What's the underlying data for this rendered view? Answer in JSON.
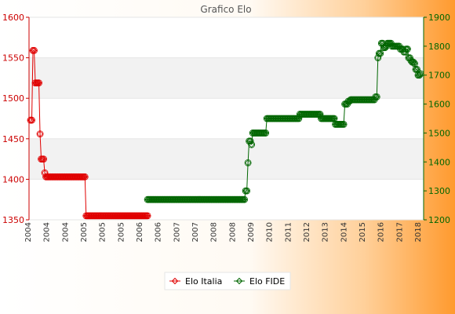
{
  "chart_data": {
    "type": "line",
    "title": "Grafico Elo",
    "left_axis": {
      "min": 1350,
      "max": 1600,
      "ticks": [
        1350,
        1400,
        1450,
        1500,
        1550,
        1600
      ],
      "color": "#cc0000"
    },
    "right_axis": {
      "min": 1200,
      "max": 1900,
      "ticks": [
        1200,
        1300,
        1400,
        1500,
        1600,
        1700,
        1800,
        1900
      ],
      "color": "#006600"
    },
    "legend_position": "bottom",
    "grid": "horizontal bands",
    "x_label_fragments": [
      "2004",
      "2004",
      "2004",
      "2005",
      "2005",
      "2005",
      "2006",
      "2006",
      "2007",
      "2007",
      "2008",
      "2008",
      "2009",
      "2010",
      "2011",
      "2012",
      "2013",
      "2014",
      "2015",
      "2016",
      "2017",
      "2018"
    ],
    "series": [
      {
        "name": "Elo Italia",
        "axis": "left",
        "color": "#e00000",
        "values": [
          1473,
          1473,
          1559,
          1559,
          1519,
          1519,
          1519,
          1519,
          1456,
          1425,
          1425,
          1425,
          1408,
          1403,
          1403,
          1403,
          1403,
          1403,
          1403,
          1403,
          1403,
          1403,
          1403,
          1403,
          1403,
          1403,
          1403,
          1403,
          1403,
          1403,
          1403,
          1403,
          1403,
          1403,
          1403,
          1403,
          1403,
          1403,
          1403,
          1403,
          1403,
          1403,
          1403,
          1403,
          1403,
          1403,
          1403,
          1355,
          1355,
          1355,
          1355,
          1355,
          1355,
          1355,
          1355,
          1355,
          1355,
          1355,
          1355,
          1355,
          1355,
          1355,
          1355,
          1355,
          1355,
          1355,
          1355,
          1355,
          1355,
          1355,
          1355,
          1355,
          1355,
          1355,
          1355,
          1355,
          1355,
          1355,
          1355,
          1355,
          1355,
          1355,
          1355,
          1355,
          1355,
          1355,
          1355,
          1355,
          1355,
          1355,
          1355,
          1355,
          1355,
          1355,
          1355,
          1355,
          1355,
          1355,
          1355,
          1355
        ]
      },
      {
        "name": "Elo FIDE",
        "axis": "right",
        "color": "#006600",
        "start_index": 99,
        "values": [
          1270,
          1270,
          1270,
          1270,
          1270,
          1270,
          1270,
          1270,
          1270,
          1270,
          1270,
          1270,
          1270,
          1270,
          1270,
          1270,
          1270,
          1270,
          1270,
          1270,
          1270,
          1270,
          1270,
          1270,
          1270,
          1270,
          1270,
          1270,
          1270,
          1270,
          1270,
          1270,
          1270,
          1270,
          1270,
          1270,
          1270,
          1270,
          1270,
          1270,
          1270,
          1270,
          1270,
          1270,
          1270,
          1270,
          1270,
          1270,
          1270,
          1270,
          1270,
          1270,
          1270,
          1270,
          1270,
          1270,
          1270,
          1270,
          1270,
          1270,
          1270,
          1270,
          1270,
          1270,
          1270,
          1270,
          1270,
          1270,
          1270,
          1270,
          1270,
          1270,
          1270,
          1270,
          1270,
          1270,
          1270,
          1270,
          1270,
          1270,
          1270,
          1270,
          1270,
          1300,
          1300,
          1397,
          1472,
          1472,
          1460,
          1500,
          1500,
          1500,
          1500,
          1500,
          1500,
          1500,
          1500,
          1500,
          1500,
          1500,
          1500,
          1550,
          1550,
          1550,
          1550,
          1550,
          1550,
          1550,
          1550,
          1550,
          1550,
          1550,
          1550,
          1550,
          1550,
          1550,
          1550,
          1550,
          1550,
          1550,
          1550,
          1550,
          1550,
          1550,
          1550,
          1550,
          1550,
          1550,
          1550,
          1565,
          1565,
          1565,
          1565,
          1565,
          1565,
          1565,
          1565,
          1565,
          1565,
          1565,
          1565,
          1565,
          1565,
          1565,
          1565,
          1565,
          1565,
          1550,
          1550,
          1550,
          1550,
          1550,
          1550,
          1550,
          1550,
          1550,
          1550,
          1550,
          1550,
          1530,
          1530,
          1530,
          1530,
          1530,
          1530,
          1530,
          1530,
          1600,
          1600,
          1600,
          1610,
          1610,
          1615,
          1615,
          1615,
          1615,
          1615,
          1615,
          1615,
          1615,
          1615,
          1615,
          1615,
          1615,
          1615,
          1615,
          1615,
          1615,
          1615,
          1615,
          1615,
          1615,
          1615,
          1625,
          1625,
          1760,
          1775,
          1775,
          1810,
          1810,
          1795,
          1795,
          1800,
          1810,
          1810,
          1810,
          1810,
          1800,
          1800,
          1800,
          1800,
          1800,
          1800,
          1800,
          1790,
          1790,
          1790,
          1780,
          1780,
          1790,
          1790,
          1760,
          1760,
          1750,
          1745,
          1745,
          1740,
          1720,
          1720,
          1700,
          1700,
          1705
        ]
      }
    ]
  }
}
